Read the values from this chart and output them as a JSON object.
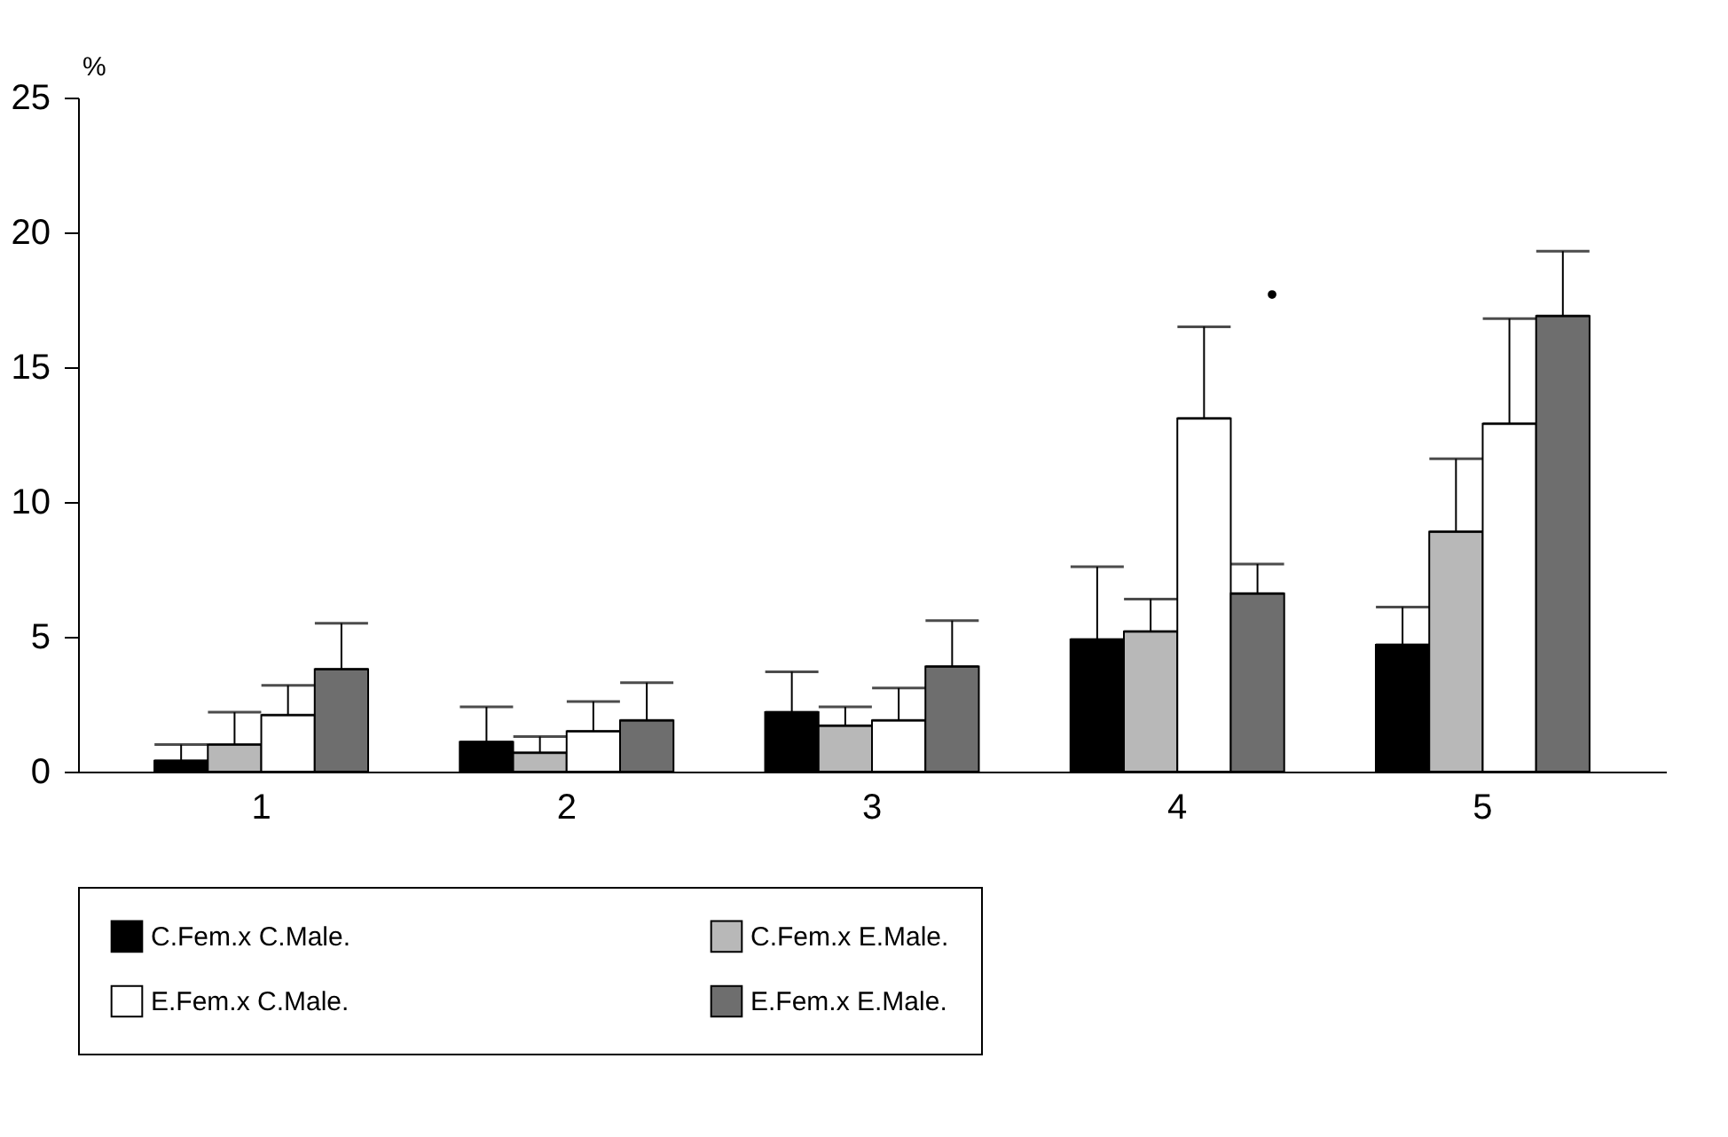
{
  "chart_data": {
    "type": "bar",
    "ylabel": "%",
    "categories": [
      "1",
      "2",
      "3",
      "4",
      "5"
    ],
    "series": [
      {
        "name": "C.Fem.x C.Male.",
        "color": "#000000",
        "values": [
          0.4,
          1.1,
          2.2,
          4.9,
          4.7
        ],
        "errors": [
          [
            0.4,
            1.0
          ],
          [
            1.1,
            2.4
          ],
          [
            2.2,
            3.7
          ],
          [
            4.9,
            7.6
          ],
          [
            4.7,
            6.1
          ]
        ]
      },
      {
        "name": "C.Fem.x E.Male.",
        "color": "#b8b8b8",
        "values": [
          1.0,
          0.7,
          1.7,
          5.2,
          8.9
        ],
        "errors": [
          [
            1.0,
            2.2
          ],
          [
            0.7,
            1.3
          ],
          [
            1.7,
            2.4
          ],
          [
            5.2,
            6.4
          ],
          [
            8.9,
            11.6
          ]
        ]
      },
      {
        "name": "E.Fem.x C.Male.",
        "color": "#ffffff",
        "values": [
          2.1,
          1.5,
          1.9,
          13.1,
          12.9
        ],
        "errors": [
          [
            2.1,
            3.2
          ],
          [
            1.5,
            2.6
          ],
          [
            1.9,
            3.1
          ],
          [
            13.1,
            16.5
          ],
          [
            12.9,
            16.8
          ]
        ]
      },
      {
        "name": "E.Fem.x E.Male.",
        "color": "#6e6e6e",
        "values": [
          3.8,
          1.9,
          3.9,
          6.6,
          16.9
        ],
        "errors": [
          [
            3.8,
            5.5
          ],
          [
            1.9,
            3.3
          ],
          [
            3.9,
            5.6
          ],
          [
            6.6,
            7.7
          ],
          [
            16.9,
            19.3
          ]
        ]
      }
    ],
    "ylim": [
      0,
      25
    ],
    "yticks": [
      0,
      5,
      10,
      15,
      20,
      25
    ],
    "grid": false,
    "legend": "bottom",
    "annotations": [
      "•"
    ]
  }
}
